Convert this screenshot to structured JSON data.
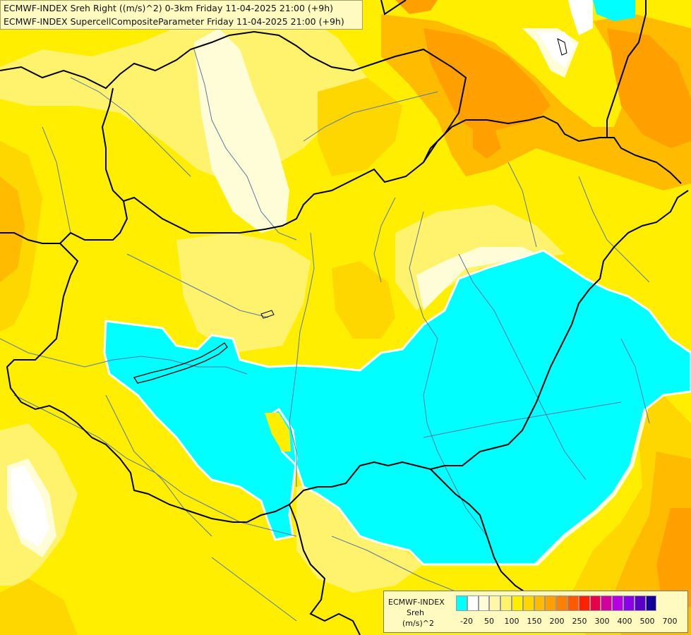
{
  "title": {
    "line1": "ECMWF-INDEX Sreh Right ((m/s)^2) 0-3km Friday 11-04-2025 21:00 (+9h)",
    "line2": "ECMWF-INDEX SupercellCompositeParameter Friday 11-04-2025 21:00 (+9h)"
  },
  "legend": {
    "name": "ECMWF-INDEX",
    "variable": "Sreh",
    "unit": "(m/s)^2",
    "colors": [
      "#00ffff",
      "#ffffff",
      "#fffcd8",
      "#fff7a8",
      "#fff36e",
      "#ffee00",
      "#ffd700",
      "#ffbb00",
      "#ff9f00",
      "#ff7f00",
      "#ff5a00",
      "#ff2000",
      "#e8004a",
      "#d2009c",
      "#b400e0",
      "#8c00e8",
      "#5a00c8",
      "#140096"
    ],
    "ticks": [
      "-20",
      "50",
      "100",
      "150",
      "200",
      "250",
      "300",
      "400",
      "500",
      "700"
    ]
  },
  "map": {
    "fill_colors": {
      "base_yellow": "#ffee00",
      "light_yellow": "#fff36e",
      "pale_yellow": "#fffcd8",
      "gold": "#ffd700",
      "orange_light": "#ffbb00",
      "orange": "#ff9f00",
      "cyan": "#00ffff",
      "white": "#ffffff"
    },
    "border_color": "#000000",
    "river_color": "#5a78a0"
  }
}
